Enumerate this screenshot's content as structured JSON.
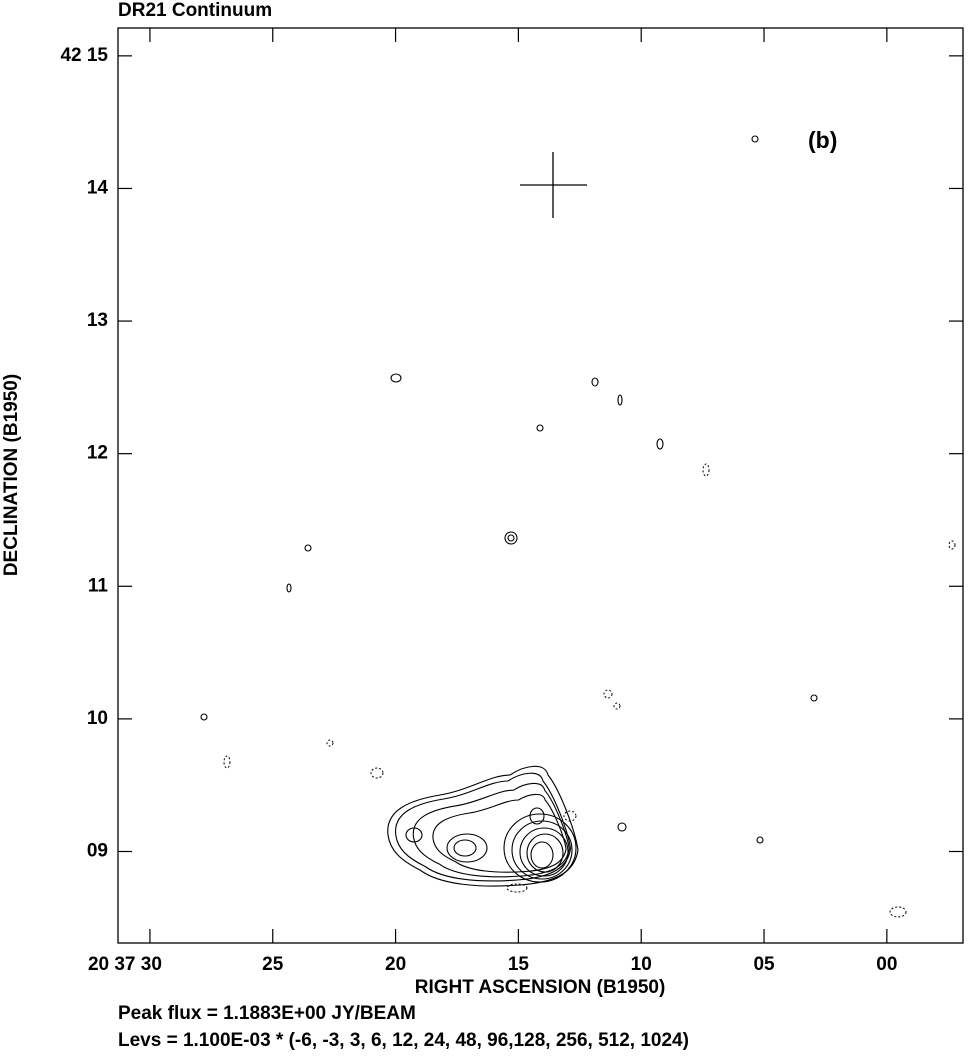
{
  "chart_data": {
    "type": "contour",
    "title": "DR21 Continuum",
    "annotation": "(b)",
    "xlabel": "RIGHT ASCENSION (B1950)",
    "ylabel": "DECLINATION (B1950)",
    "notes": [
      "Peak flux =  1.1883E+00 JY/BEAM",
      "Levs = 1.100E-03 * (-6, -3, 3, 6, 12, 24, 48, 96,128, 256, 512, 1024)"
    ],
    "xlim": [
      31.3,
      -3.1
    ],
    "xticks": [
      {
        "value": 30,
        "label": "20 37 30"
      },
      25,
      20,
      15,
      10,
      {
        "value": 5,
        "label": "05"
      },
      {
        "value": 0,
        "label": "00"
      }
    ],
    "ylim": [
      8.31,
      15.21
    ],
    "yticks": [
      {
        "value": 9,
        "label": "09"
      },
      10,
      11,
      12,
      13,
      14,
      {
        "value": 15,
        "label": "42 15"
      }
    ],
    "color": "#000000"
  }
}
